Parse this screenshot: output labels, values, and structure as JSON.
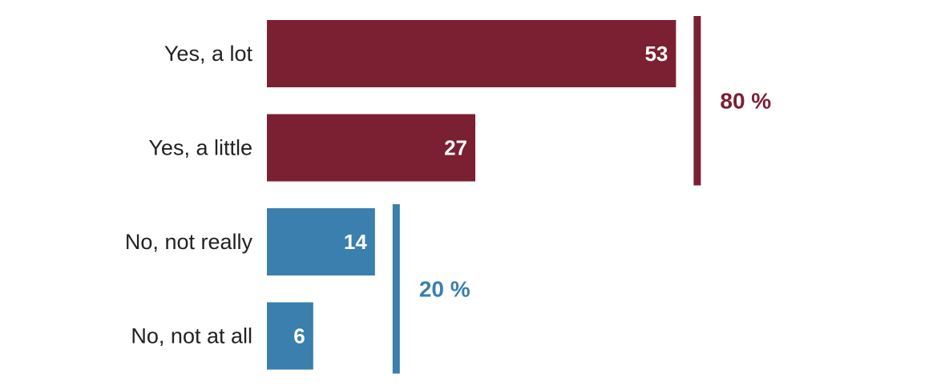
{
  "chart_data": {
    "type": "bar",
    "orientation": "horizontal",
    "categories": [
      "Yes, a lot",
      "Yes, a little",
      "No, not really",
      "No, not at all"
    ],
    "values": [
      53,
      27,
      14,
      6
    ],
    "value_labels": [
      "53",
      "27",
      "14",
      "6"
    ],
    "bar_colors": [
      "#7b1f32",
      "#7b1f32",
      "#3a7fad",
      "#3a7fad"
    ],
    "xlim": [
      0,
      100
    ],
    "grid": false,
    "legend": "none",
    "groups": [
      {
        "label": "80 %",
        "value": 80,
        "color": "#7b1f32",
        "members": [
          0,
          1
        ]
      },
      {
        "label": "20 %",
        "value": 20,
        "color": "#3a7fad",
        "members": [
          2,
          3
        ]
      }
    ]
  }
}
